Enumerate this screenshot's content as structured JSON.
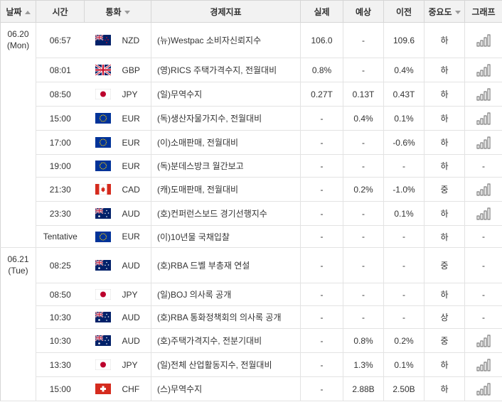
{
  "headers": {
    "date": "날짜",
    "time": "시간",
    "currency": "통화",
    "indicator": "경제지표",
    "actual": "실제",
    "forecast": "예상",
    "previous": "이전",
    "importance": "중요도",
    "graph": "그래프"
  },
  "days": [
    {
      "date": "06.20",
      "weekday": "(Mon)"
    },
    {
      "date": "06.21",
      "weekday": "(Tue)"
    }
  ],
  "flag_colors": {
    "nz": "#012169",
    "gb": "#012169",
    "jp": "#bc002d",
    "eu": "#003399",
    "ca": "#d52b1e",
    "au": "#012169",
    "ch": "#d52b1e"
  },
  "rows": [
    {
      "day": 0,
      "time": "06:57",
      "flag": "nz",
      "flag_icon": "new-zealand-flag-icon",
      "currency": "NZD",
      "indicator": "(뉴)Westpac 소비자신뢰지수",
      "actual": "106.0",
      "forecast": "-",
      "previous": "109.6",
      "importance": "하",
      "graph": true
    },
    {
      "day": 0,
      "time": "08:01",
      "flag": "gb",
      "flag_icon": "uk-flag-icon",
      "currency": "GBP",
      "indicator": "(영)RICS 주택가격수지, 전월대비",
      "actual": "0.8%",
      "forecast": "-",
      "previous": "0.4%",
      "importance": "하",
      "graph": true
    },
    {
      "day": 0,
      "time": "08:50",
      "flag": "jp",
      "flag_icon": "japan-flag-icon",
      "currency": "JPY",
      "indicator": "(일)무역수지",
      "actual": "0.27T",
      "forecast": "0.13T",
      "previous": "0.43T",
      "importance": "하",
      "graph": true
    },
    {
      "day": 0,
      "time": "15:00",
      "flag": "eu",
      "flag_icon": "eu-flag-icon",
      "currency": "EUR",
      "indicator": "(독)생산자물가지수, 전월대비",
      "actual": "-",
      "forecast": "0.4%",
      "previous": "0.1%",
      "importance": "하",
      "graph": true
    },
    {
      "day": 0,
      "time": "17:00",
      "flag": "eu",
      "flag_icon": "eu-flag-icon",
      "currency": "EUR",
      "indicator": "(이)소매판매, 전월대비",
      "actual": "-",
      "forecast": "-",
      "previous": "-0.6%",
      "importance": "하",
      "graph": true
    },
    {
      "day": 0,
      "time": "19:00",
      "flag": "eu",
      "flag_icon": "eu-flag-icon",
      "currency": "EUR",
      "indicator": "(독)분데스방크 월간보고",
      "actual": "-",
      "forecast": "-",
      "previous": "-",
      "importance": "하",
      "graph": false
    },
    {
      "day": 0,
      "time": "21:30",
      "flag": "ca",
      "flag_icon": "canada-flag-icon",
      "currency": "CAD",
      "indicator": "(캐)도매판매, 전월대비",
      "actual": "-",
      "forecast": "0.2%",
      "previous": "-1.0%",
      "importance": "중",
      "graph": true
    },
    {
      "day": 0,
      "time": "23:30",
      "flag": "au",
      "flag_icon": "australia-flag-icon",
      "currency": "AUD",
      "indicator": "(호)컨퍼런스보드 경기선행지수",
      "actual": "-",
      "forecast": "-",
      "previous": "0.1%",
      "importance": "하",
      "graph": true
    },
    {
      "day": 0,
      "time": "Tentative",
      "flag": "eu",
      "flag_icon": "eu-flag-icon",
      "currency": "EUR",
      "indicator": "(이)10년물 국채입찰",
      "actual": "-",
      "forecast": "-",
      "previous": "-",
      "importance": "하",
      "graph": false
    },
    {
      "day": 1,
      "time": "08:25",
      "flag": "au",
      "flag_icon": "australia-flag-icon",
      "currency": "AUD",
      "indicator": "(호)RBA 드벨 부총재 연설",
      "actual": "-",
      "forecast": "-",
      "previous": "-",
      "importance": "중",
      "graph": false
    },
    {
      "day": 1,
      "time": "08:50",
      "flag": "jp",
      "flag_icon": "japan-flag-icon",
      "currency": "JPY",
      "indicator": "(일)BOJ 의사록 공개",
      "actual": "-",
      "forecast": "-",
      "previous": "-",
      "importance": "하",
      "graph": false
    },
    {
      "day": 1,
      "time": "10:30",
      "flag": "au",
      "flag_icon": "australia-flag-icon",
      "currency": "AUD",
      "indicator": "(호)RBA 통화정책회의 의사록 공개",
      "actual": "-",
      "forecast": "-",
      "previous": "-",
      "importance": "상",
      "graph": false
    },
    {
      "day": 1,
      "time": "10:30",
      "flag": "au",
      "flag_icon": "australia-flag-icon",
      "currency": "AUD",
      "indicator": "(호)주택가격지수, 전분기대비",
      "actual": "-",
      "forecast": "0.8%",
      "previous": "0.2%",
      "importance": "중",
      "graph": true
    },
    {
      "day": 1,
      "time": "13:30",
      "flag": "jp",
      "flag_icon": "japan-flag-icon",
      "currency": "JPY",
      "indicator": "(일)전체 산업활동지수, 전월대비",
      "actual": "-",
      "forecast": "1.3%",
      "previous": "0.1%",
      "importance": "하",
      "graph": true
    },
    {
      "day": 1,
      "time": "15:00",
      "flag": "ch",
      "flag_icon": "switzerland-flag-icon",
      "currency": "CHF",
      "indicator": "(스)무역수지",
      "actual": "-",
      "forecast": "2.88B",
      "previous": "2.50B",
      "importance": "하",
      "graph": true
    }
  ],
  "no_graph_text": "-"
}
